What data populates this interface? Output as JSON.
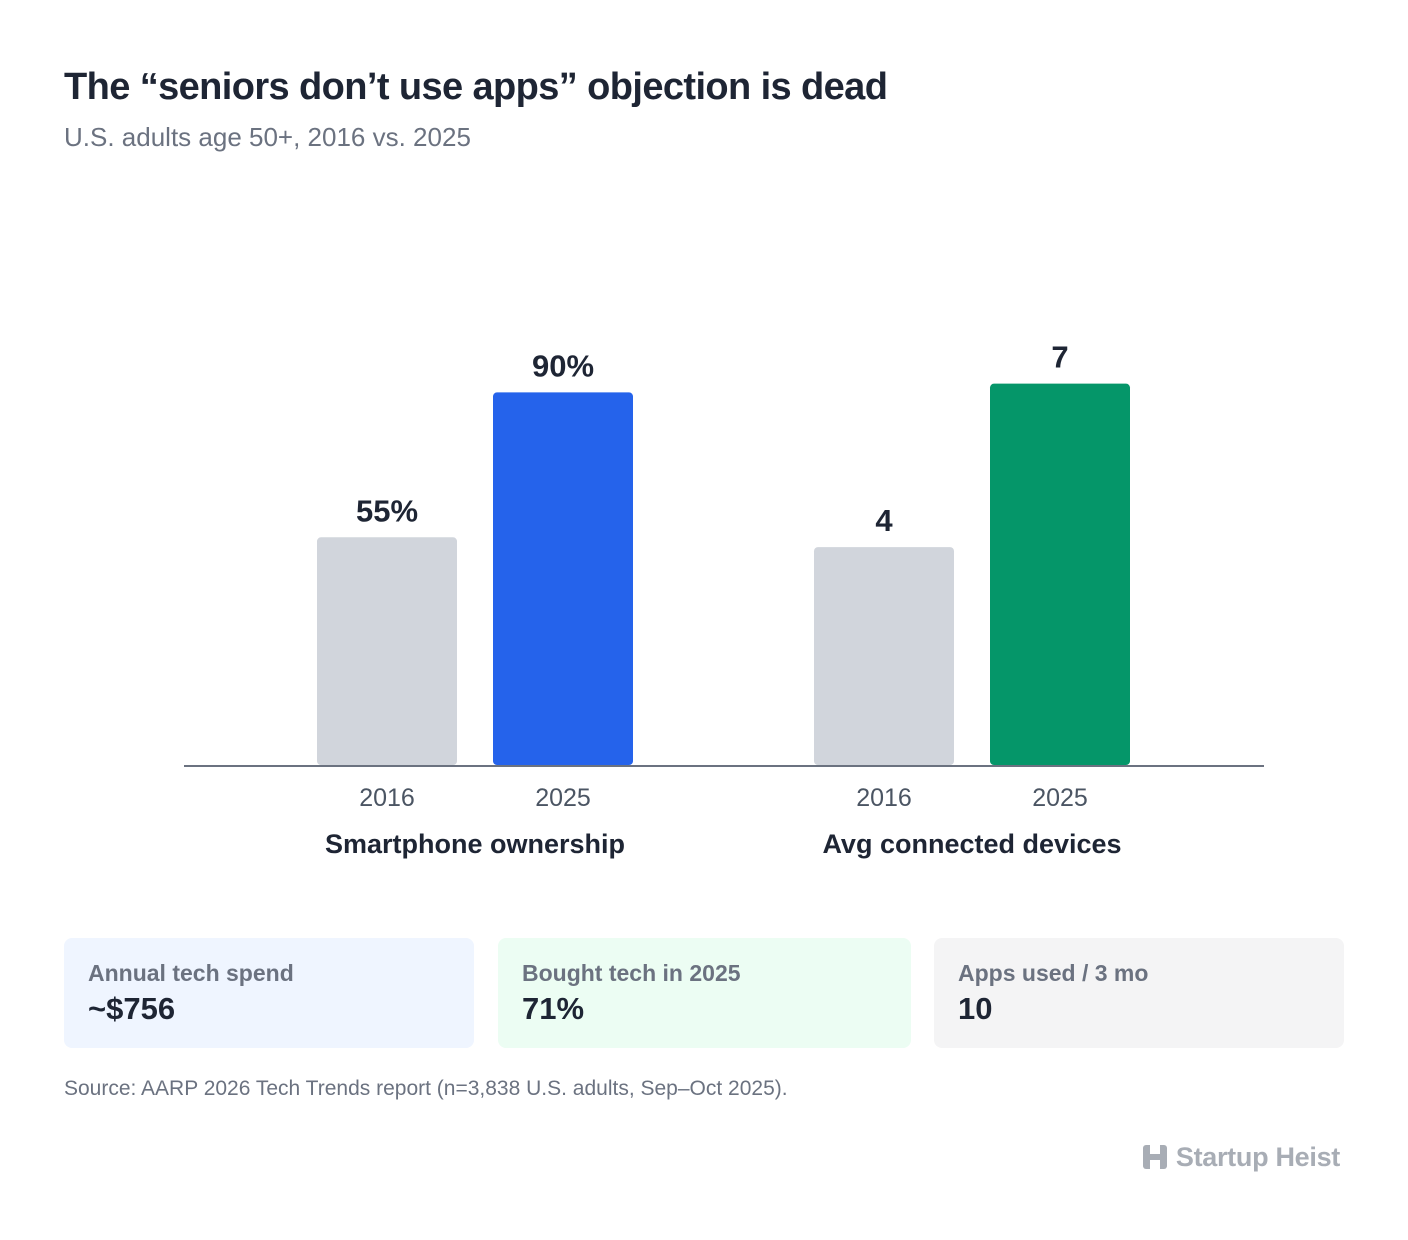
{
  "title": "The “seniors don’t use apps” objection is dead",
  "subtitle": "U.S. adults age 50+, 2016 vs. 2025",
  "chart_data": [
    {
      "type": "bar",
      "group": "Smartphone ownership",
      "categories": [
        "2016",
        "2025"
      ],
      "values": [
        55,
        90
      ],
      "labels": [
        "55%",
        "90%"
      ],
      "unit": "%",
      "colors": [
        "#d1d5dc",
        "#2563eb"
      ],
      "ylim": [
        0,
        100
      ]
    },
    {
      "type": "bar",
      "group": "Avg connected devices",
      "categories": [
        "2016",
        "2025"
      ],
      "values": [
        4,
        7
      ],
      "labels": [
        "4",
        "7"
      ],
      "unit": "devices",
      "colors": [
        "#d1d5dc",
        "#059669"
      ],
      "ylim": [
        0,
        7.6
      ]
    }
  ],
  "cards": [
    {
      "label": "Annual tech spend",
      "value": "~$756",
      "bg": "#eff5ff"
    },
    {
      "label": "Bought tech in 2025",
      "value": "71%",
      "bg": "#ecfdf3"
    },
    {
      "label": "Apps used / 3 mo",
      "value": "10",
      "bg": "#f4f4f5"
    }
  ],
  "source": "Source: AARP 2026 Tech Trends report (n=3,838 U.S. adults, Sep–Oct 2025).",
  "brand": {
    "name": "Startup Heist",
    "icon": "building-logo-icon"
  }
}
